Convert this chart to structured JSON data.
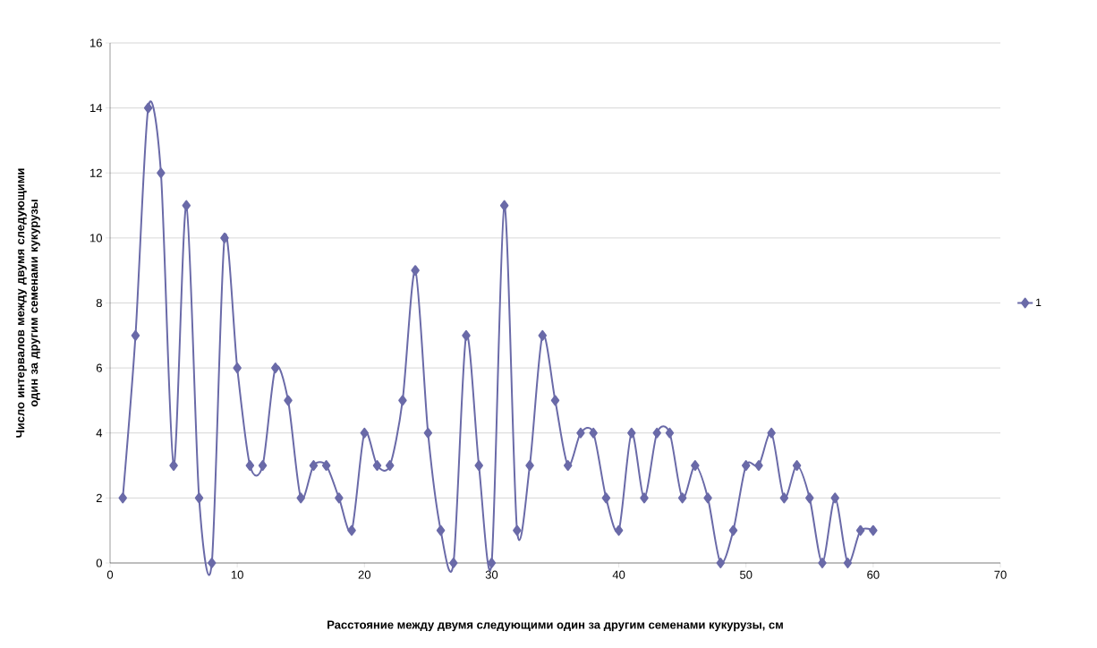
{
  "chart_data": {
    "type": "line",
    "xlabel": "Расстояние между двумя следующими один за другим семенами кукурузы, см",
    "ylabel": "Число интервалов между двумя следующими один за другим семенами кукурузы",
    "x": [
      1,
      2,
      3,
      4,
      5,
      6,
      7,
      8,
      9,
      10,
      11,
      12,
      13,
      14,
      15,
      16,
      17,
      18,
      19,
      20,
      21,
      22,
      23,
      24,
      25,
      26,
      27,
      28,
      29,
      30,
      31,
      32,
      33,
      34,
      35,
      36,
      37,
      38,
      39,
      40,
      41,
      42,
      43,
      44,
      45,
      46,
      47,
      48,
      49,
      50,
      51,
      52,
      53,
      54,
      55,
      56,
      57,
      58,
      59,
      60
    ],
    "series": [
      {
        "name": "1",
        "color": "#6a6aa8",
        "values": [
          2,
          7,
          14,
          12,
          3,
          11,
          2,
          0,
          10,
          6,
          3,
          3,
          6,
          5,
          2,
          3,
          3,
          2,
          1,
          4,
          3,
          3,
          5,
          9,
          4,
          1,
          0,
          7,
          3,
          0,
          11,
          1,
          3,
          7,
          5,
          3,
          4,
          4,
          2,
          1,
          4,
          2,
          4,
          4,
          2,
          3,
          2,
          0,
          1,
          3,
          3,
          4,
          2,
          3,
          2,
          0,
          2,
          0,
          1,
          1
        ]
      }
    ],
    "xlim": [
      0,
      70
    ],
    "xticks": [
      0,
      10,
      20,
      30,
      40,
      50,
      60,
      70
    ],
    "ylim": [
      0,
      16
    ],
    "yticks": [
      0,
      2,
      4,
      6,
      8,
      10,
      12,
      14,
      16
    ],
    "grid": "y",
    "legend": "right",
    "marker": "diamond",
    "line_style": "solid"
  }
}
